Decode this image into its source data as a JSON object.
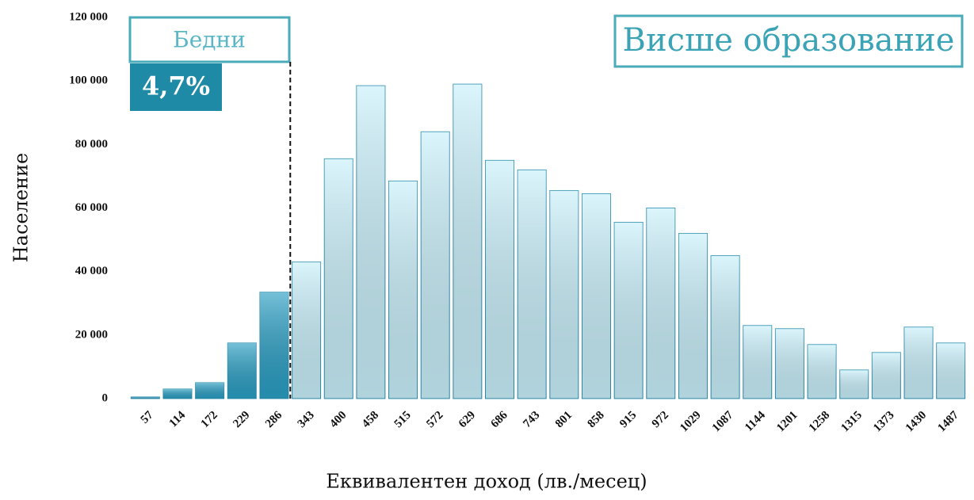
{
  "chart_data": {
    "type": "bar",
    "y_label": "Население",
    "x_label": "Еквивалентен доход (лв./месец)",
    "categories": [
      "57",
      "114",
      "172",
      "229",
      "286",
      "343",
      "400",
      "458",
      "515",
      "572",
      "629",
      "686",
      "743",
      "801",
      "858",
      "915",
      "972",
      "1029",
      "1087",
      "1144",
      "1201",
      "1258",
      "1315",
      "1373",
      "1430",
      "1487"
    ],
    "values": [
      500,
      3000,
      5000,
      17500,
      33500,
      43000,
      75500,
      98500,
      68500,
      84000,
      99000,
      75000,
      72000,
      65500,
      64500,
      55500,
      60000,
      52000,
      45000,
      23000,
      22000,
      17000,
      9000,
      14500,
      22500,
      17500
    ],
    "colors": [
      "#2a9fc4",
      "#2a9fc4",
      "#2a9fc4",
      "#2a9fc4",
      "#2a9fc4",
      "#c9f0fb",
      "#c9f0fb",
      "#c9f0fb",
      "#c9f0fb",
      "#c9f0fb",
      "#c9f0fb",
      "#c9f0fb",
      "#c9f0fb",
      "#c9f0fb",
      "#c9f0fb",
      "#c9f0fb",
      "#c9f0fb",
      "#c9f0fb",
      "#c9f0fb",
      "#c9f0fb",
      "#c9f0fb",
      "#c9f0fb",
      "#c9f0fb",
      "#c9f0fb",
      "#c9f0fb",
      "#c9f0fb"
    ],
    "ylim": [
      0,
      120000
    ],
    "yticks": [
      0,
      {
        "value": 20000,
        "label": "20 000"
      },
      {
        "value": 40000,
        "label": "40 000"
      },
      {
        "value": 60000,
        "label": "60 000"
      },
      {
        "value": 80000,
        "label": "80 000"
      },
      {
        "value": 100000,
        "label": "100 000"
      },
      {
        "value": 120000,
        "label": "120 000"
      }
    ],
    "grid": false,
    "annotations": {
      "poor_label": "Бедни",
      "poor_share": "4,7%",
      "group": "Висше образование"
    }
  }
}
